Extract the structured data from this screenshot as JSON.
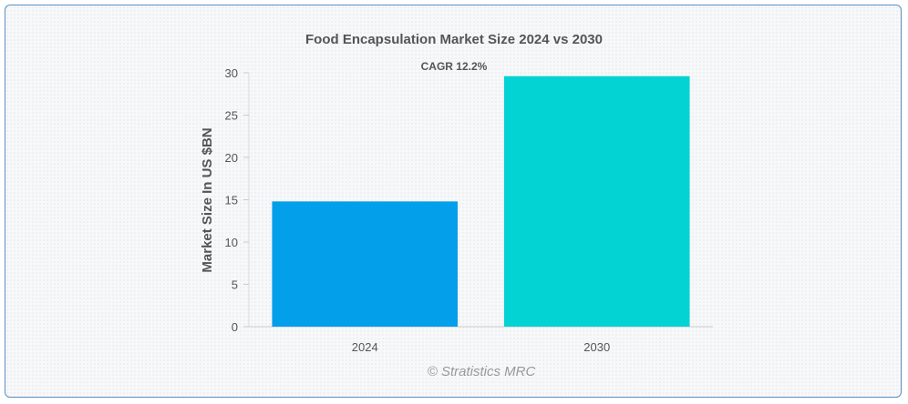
{
  "chart_data": {
    "type": "bar",
    "title": "Food Encapsulation Market Size 2024 vs 2030",
    "annotation": "CAGR 12.2%",
    "categories": [
      "2024",
      "2030"
    ],
    "values": [
      14.8,
      29.6
    ],
    "colors": [
      "#039fea",
      "#03d3d3"
    ],
    "ylabel": "Market Size In US $BN",
    "xlabel": "",
    "ylim": [
      0,
      30
    ],
    "yticks": [
      0,
      5,
      10,
      15,
      20,
      25,
      30
    ],
    "grid": false,
    "legend": "none"
  },
  "watermark": "© Stratistics MRC"
}
